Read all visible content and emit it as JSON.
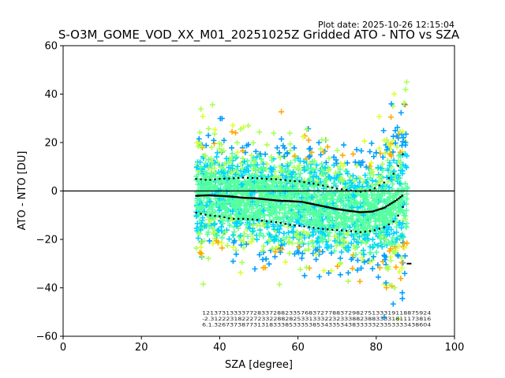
{
  "chart_data": {
    "type": "scatter",
    "title": "S-O3M_GOME_VOD_XX_M01_20251025Z Gridded ATO - NTO vs SZA",
    "plot_date": "Plot date: 2025-10-26 12:15:04",
    "xlabel": "SZA [degree]",
    "ylabel": "ATO - NTO [DU]",
    "xlim": [
      0,
      100
    ],
    "ylim": [
      -60,
      60
    ],
    "xticks": [
      "0",
      "20",
      "40",
      "60",
      "80",
      "100"
    ],
    "yticks": [
      "−60",
      "−40",
      "−20",
      "0",
      "20",
      "40",
      "60"
    ],
    "grid": false,
    "marker": "+",
    "scatter_colors": [
      "#55ffa0",
      "#00d4ff",
      "#aaff55",
      "#ffaa00",
      "#00a0ff",
      "#e0ff30"
    ],
    "zero_line": 0,
    "sza_range": [
      34,
      88
    ],
    "mean_curve": {
      "x": [
        34,
        37,
        40,
        43,
        46,
        49,
        52,
        55,
        58,
        61,
        64,
        67,
        70,
        73,
        76,
        79,
        82,
        85,
        87,
        88
      ],
      "y": [
        -2,
        -1.8,
        -2,
        -2.3,
        -2.8,
        -3,
        -3.5,
        -4,
        -4.2,
        -4.5,
        -5.5,
        -6.5,
        -7.5,
        -8.2,
        -8.8,
        -8.5,
        -7,
        -4,
        -1.5,
        -30
      ]
    },
    "upper_band": {
      "x": [
        34,
        37,
        40,
        43,
        46,
        49,
        52,
        55,
        58,
        61,
        64,
        67,
        70,
        73,
        76,
        79,
        82,
        85,
        87
      ],
      "y": [
        5,
        4.5,
        5,
        5.2,
        5.5,
        5.3,
        5,
        4.8,
        4.2,
        3.8,
        3,
        2,
        1,
        0.3,
        -0.3,
        0.5,
        3.5,
        8,
        16
      ]
    },
    "lower_band": {
      "x": [
        34,
        37,
        40,
        43,
        46,
        49,
        52,
        55,
        58,
        61,
        64,
        67,
        70,
        73,
        76,
        79,
        82,
        85,
        87
      ],
      "y": [
        -9,
        -10,
        -10.5,
        -11.5,
        -11.5,
        -11.8,
        -12.5,
        -13,
        -14,
        -14.5,
        -15.2,
        -15.8,
        -16.2,
        -16.5,
        -17,
        -16.5,
        -15,
        -12,
        -6
      ]
    },
    "count_rows": [
      "1213731333377283372882335768372778837298275133319118875924",
      "-2.31222318222723322882825331333223233388238833331811173816",
      "6.1.3267373877313183338533353853433534383333323353333438604"
    ]
  }
}
